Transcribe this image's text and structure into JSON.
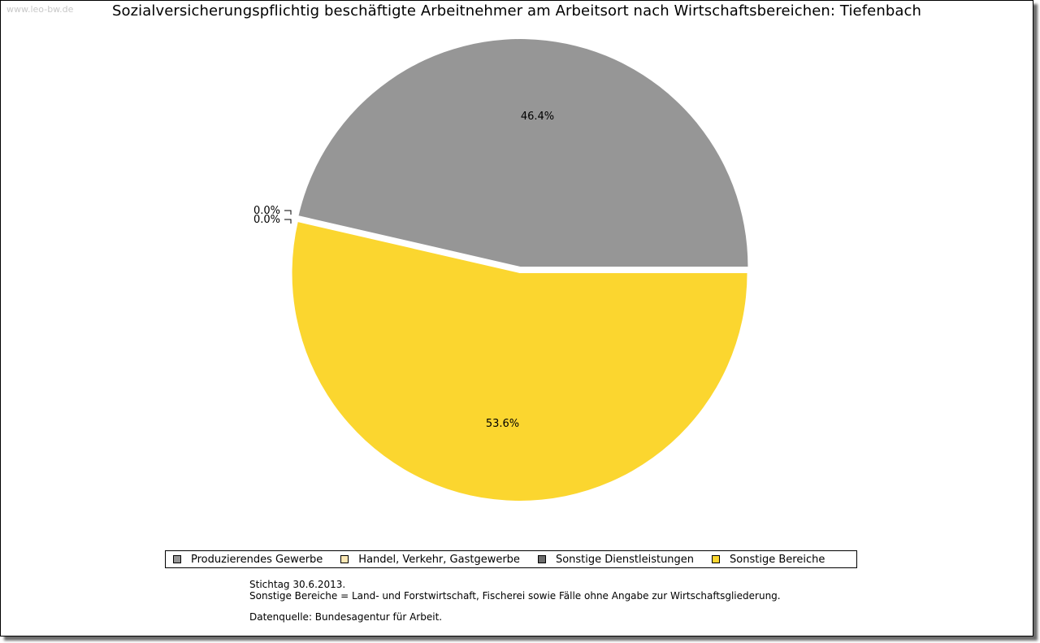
{
  "watermark": "www.leo-bw.de",
  "chart_data": {
    "type": "pie",
    "title": "Sozialversicherungspflichtig beschäftigte Arbeitnehmer am Arbeitsort nach Wirtschaftsbereichen: Tiefenbach",
    "slices": [
      {
        "name": "Produzierendes Gewerbe",
        "value": 46.4,
        "label": "46.4%",
        "color": "#969696"
      },
      {
        "name": "Handel, Verkehr, Gastgewerbe",
        "value": 0.0,
        "label": "0.0%",
        "color": "#fde8b4"
      },
      {
        "name": "Sonstige Dienstleistungen",
        "value": 0.0,
        "label": "0.0%",
        "color": "#6b6b6b"
      },
      {
        "name": "Sonstige Bereiche",
        "value": 53.6,
        "label": "53.6%",
        "color": "#fbd62f"
      }
    ],
    "legend_placement": "bottom"
  },
  "notes": {
    "line1": "Stichtag 30.6.2013.",
    "line2": "Sonstige Bereiche = Land- und Forstwirtschaft, Fischerei sowie Fälle ohne Angabe zur Wirtschaftsgliederung.",
    "source": "Datenquelle: Bundesagentur für Arbeit."
  }
}
